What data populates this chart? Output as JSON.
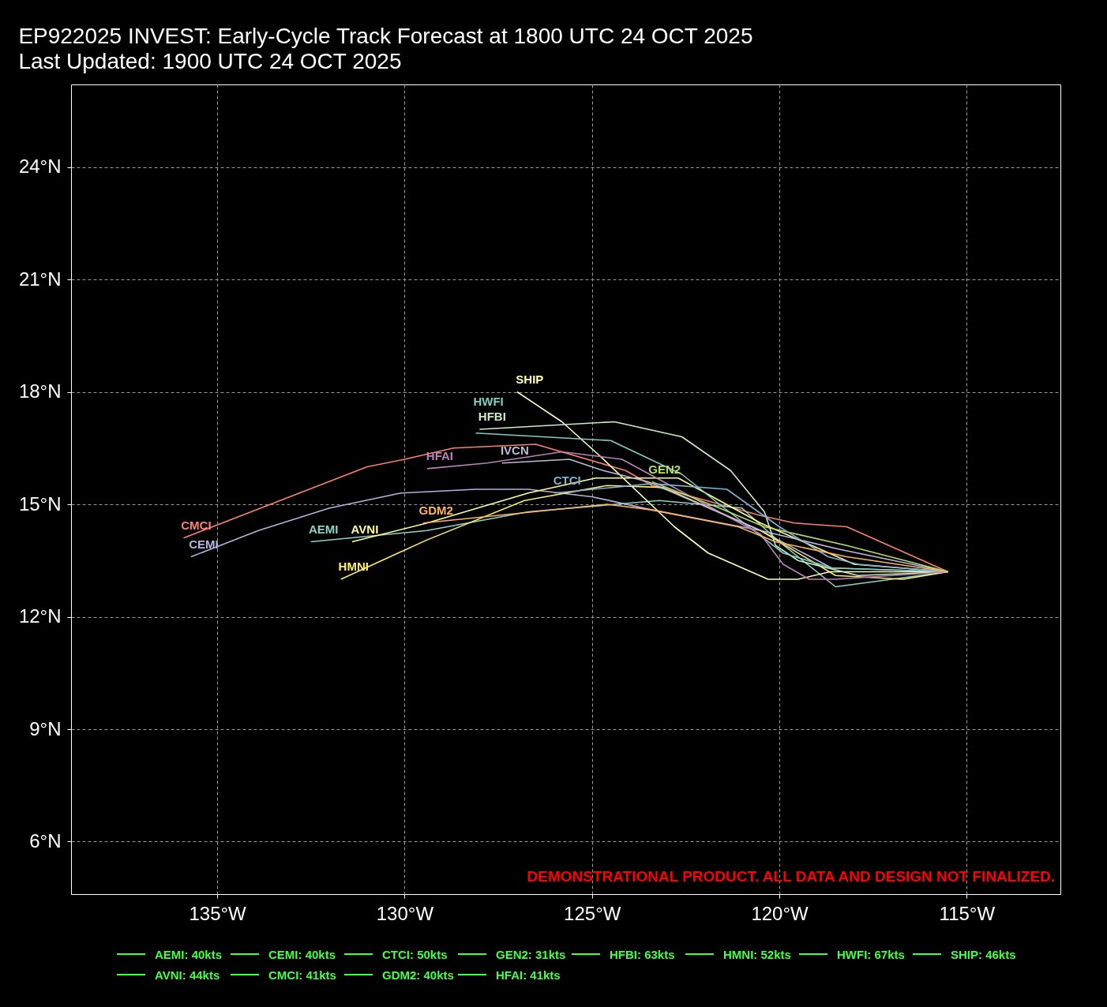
{
  "chart_data": {
    "type": "line",
    "title": "EP922025 INVEST: Early-Cycle Track Forecast at 1800 UTC 24 OCT 2025",
    "subtitle": "Last Updated: 1900 UTC 24 OCT 2025",
    "xlim": [
      -138.9,
      -112.5
    ],
    "ylim": [
      4.6,
      26.2
    ],
    "xticks": [
      {
        "value": -135,
        "label": "135°W"
      },
      {
        "value": -130,
        "label": "130°W"
      },
      {
        "value": -125,
        "label": "125°W"
      },
      {
        "value": -120,
        "label": "120°W"
      },
      {
        "value": -115,
        "label": "115°W"
      }
    ],
    "yticks": [
      {
        "value": 6,
        "label": "6°N"
      },
      {
        "value": 9,
        "label": "9°N"
      },
      {
        "value": 12,
        "label": "12°N"
      },
      {
        "value": 15,
        "label": "15°N"
      },
      {
        "value": 18,
        "label": "18°N"
      },
      {
        "value": 21,
        "label": "21°N"
      },
      {
        "value": 24,
        "label": "24°N"
      }
    ],
    "grid": true,
    "series": [
      {
        "name": "CMCI",
        "color": "#fb8072",
        "x": [
          -135.9,
          -131.0,
          -130.0,
          -128.7,
          -126.5,
          -124.1,
          -123.4,
          -120.5,
          -119.6,
          -118.2,
          -115.5
        ],
        "values": [
          14.1,
          16.0,
          16.2,
          16.5,
          16.6,
          15.9,
          15.5,
          14.7,
          14.5,
          14.4,
          13.2
        ]
      },
      {
        "name": "CEMI",
        "color": "#b3b3de",
        "x": [
          -135.7,
          -133.9,
          -132.0,
          -130.1,
          -128.1,
          -126.7,
          -125.0,
          -123.4,
          -120.5,
          -118.6,
          -115.5
        ],
        "values": [
          13.6,
          14.3,
          14.9,
          15.3,
          15.4,
          15.4,
          15.2,
          14.85,
          14.3,
          13.3,
          13.2
        ]
      },
      {
        "name": "AEMI",
        "color": "#8dd3c7",
        "x": [
          -132.5,
          -129.4,
          -126.7,
          -123.2,
          -121.0,
          -120.0,
          -118.5,
          -115.5
        ],
        "values": [
          14.0,
          14.3,
          14.8,
          15.1,
          14.9,
          14.0,
          12.8,
          13.2
        ]
      },
      {
        "name": "AVNI",
        "color": "#ffff99",
        "x": [
          -131.4,
          -129.4,
          -126.7,
          -124.9,
          -122.7,
          -120.5,
          -118.0,
          -115.5
        ],
        "values": [
          14.0,
          14.5,
          15.3,
          15.7,
          15.7,
          14.5,
          13.4,
          13.2
        ]
      },
      {
        "name": "HMNI",
        "color": "#ffed6f",
        "x": [
          -131.7,
          -129.4,
          -126.8,
          -124.6,
          -123.1,
          -120.5,
          -118.5,
          -116.7,
          -115.5
        ],
        "values": [
          13.0,
          14.05,
          15.1,
          15.5,
          15.45,
          14.3,
          13.1,
          13.0,
          13.2
        ]
      },
      {
        "name": "SHIP",
        "color": "#ffffb3",
        "x": [
          -127.0,
          -125.8,
          -124.8,
          -122.8,
          -121.9,
          -120.3,
          -119.5,
          -118.65,
          -115.5
        ],
        "values": [
          18.0,
          17.2,
          16.3,
          14.4,
          13.7,
          13.0,
          13.0,
          13.2,
          13.2
        ]
      },
      {
        "name": "HFBI",
        "color": "#ccebc5",
        "x": [
          -128.0,
          -124.4,
          -122.6,
          -121.3,
          -120.4,
          -120.1,
          -119.5,
          -117.9,
          -115.5
        ],
        "values": [
          17.0,
          17.2,
          16.8,
          15.9,
          14.8,
          13.9,
          13.5,
          13.1,
          13.2
        ]
      },
      {
        "name": "HWFI",
        "color": "#80cdc1",
        "x": [
          -128.1,
          -124.5,
          -122.6,
          -121.6,
          -119.9,
          -118.6,
          -115.5
        ],
        "values": [
          16.9,
          16.7,
          15.8,
          15.0,
          13.7,
          13.3,
          13.2
        ]
      },
      {
        "name": "HFAI",
        "color": "#bc80bd",
        "x": [
          -129.4,
          -127.8,
          -125.8,
          -124.2,
          -120.5,
          -119.9,
          -119.2,
          -118.5,
          -115.5
        ],
        "values": [
          15.95,
          16.1,
          16.4,
          16.2,
          14.2,
          13.4,
          13.0,
          13.0,
          13.2
        ]
      },
      {
        "name": "IVCN",
        "color": "#bebada",
        "x": [
          -127.4,
          -125.6,
          -124.7,
          -123.5,
          -120.5,
          -118.4,
          -115.5
        ],
        "values": [
          16.1,
          16.2,
          15.9,
          15.6,
          14.3,
          13.8,
          13.2
        ]
      },
      {
        "name": "GEN2",
        "color": "#b3de69",
        "x": [
          -123.4,
          -121.6,
          -120.4,
          -118.2,
          -115.5
        ],
        "values": [
          15.6,
          14.9,
          14.4,
          13.9,
          13.2
        ]
      },
      {
        "name": "CTCI",
        "color": "#80b1d3",
        "x": [
          -126.0,
          -123.4,
          -121.4,
          -120.0,
          -118.7,
          -117.9,
          -115.5
        ],
        "values": [
          15.3,
          15.55,
          15.4,
          14.4,
          13.6,
          13.4,
          13.2
        ]
      },
      {
        "name": "GDM2",
        "color": "#fdb462",
        "x": [
          -129.5,
          -124.6,
          -123.4,
          -121.1,
          -120.1,
          -118.2,
          -115.5
        ],
        "values": [
          14.5,
          15.0,
          14.85,
          14.4,
          14.0,
          13.6,
          13.2
        ]
      }
    ],
    "annotations": [
      "DEMONSTRATIONAL PRODUCT. ALL DATA AND DESIGN NOT FINALIZED.",
      "AEMI: 40kts",
      "CEMI: 40kts",
      "CTCI: 50kts",
      "GEN2: 31kts",
      "HFBI: 63kts",
      "HMNI: 52kts",
      "HWFI: 67kts",
      "SHIP: 46kts",
      "AVNI: 44kts",
      "CMCI: 41kts",
      "GDM2: 40kts",
      "HFAI: 41kts"
    ]
  }
}
